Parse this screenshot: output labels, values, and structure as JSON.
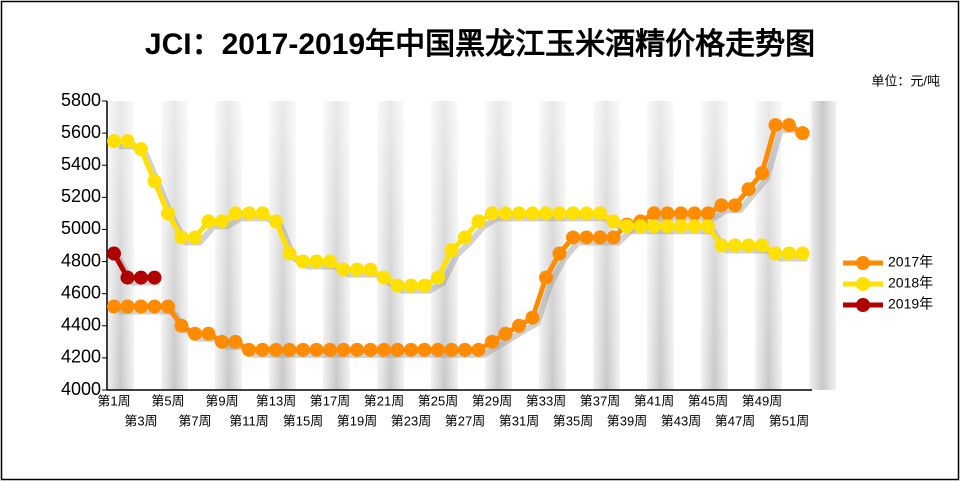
{
  "chart_data": {
    "type": "line",
    "title": "JCI：2017-2019年中国黑龙江玉米酒精价格走势图",
    "subtitle": "单位：元/吨",
    "categories": [
      "第1周",
      null,
      "第3周",
      null,
      "第5周",
      null,
      "第7周",
      null,
      "第9周",
      null,
      "第11周",
      null,
      "第13周",
      null,
      "第15周",
      null,
      "第17周",
      null,
      "第19周",
      null,
      "第21周",
      null,
      "第23周",
      null,
      "第25周",
      null,
      "第27周",
      null,
      "第29周",
      null,
      "第31周",
      null,
      "第33周",
      null,
      "第35周",
      null,
      "第37周",
      null,
      "第39周",
      null,
      "第41周",
      null,
      "第43周",
      null,
      "第45周",
      null,
      "第47周",
      null,
      "第49周",
      null,
      "第51周",
      null
    ],
    "series": [
      {
        "name": "2017年",
        "color": "#ff8c00",
        "values": [
          4520,
          4520,
          4520,
          4520,
          4520,
          4400,
          4350,
          4350,
          4300,
          4300,
          4250,
          4250,
          4250,
          4250,
          4250,
          4250,
          4250,
          4250,
          4250,
          4250,
          4250,
          4250,
          4250,
          4250,
          4250,
          4250,
          4250,
          4250,
          4300,
          4350,
          4400,
          4450,
          4700,
          4850,
          4950,
          4950,
          4950,
          4950,
          5030,
          5050,
          5100,
          5100,
          5100,
          5100,
          5100,
          5150,
          5150,
          5250,
          5350,
          5650,
          5650,
          5600
        ]
      },
      {
        "name": "2018年",
        "color": "#ffe000",
        "values": [
          5550,
          5550,
          5500,
          5300,
          5100,
          4950,
          4950,
          5050,
          5050,
          5100,
          5100,
          5100,
          5050,
          4850,
          4800,
          4800,
          4800,
          4750,
          4750,
          4750,
          4700,
          4650,
          4650,
          4650,
          4700,
          4870,
          4950,
          5050,
          5100,
          5100,
          5100,
          5100,
          5100,
          5100,
          5100,
          5100,
          5100,
          5050,
          5020,
          5020,
          5020,
          5020,
          5020,
          5020,
          5020,
          4900,
          4900,
          4900,
          4900,
          4850,
          4850,
          4850
        ]
      },
      {
        "name": "2019年",
        "color": "#b00000",
        "values": [
          4850,
          4700,
          4700,
          4700,
          null,
          null,
          null,
          null,
          null,
          null,
          null,
          null,
          null,
          null,
          null,
          null,
          null,
          null,
          null,
          null,
          null,
          null,
          null,
          null,
          null,
          null,
          null,
          null,
          null,
          null,
          null,
          null,
          null,
          null,
          null,
          null,
          null,
          null,
          null,
          null,
          null,
          null,
          null,
          null,
          null,
          null,
          null,
          null,
          null,
          null,
          null,
          null
        ]
      }
    ],
    "ylim": [
      4000,
      5800
    ],
    "yticks": [
      4000,
      4200,
      4400,
      4600,
      4800,
      5000,
      5200,
      5400,
      5600,
      5800
    ],
    "legend": "right"
  }
}
